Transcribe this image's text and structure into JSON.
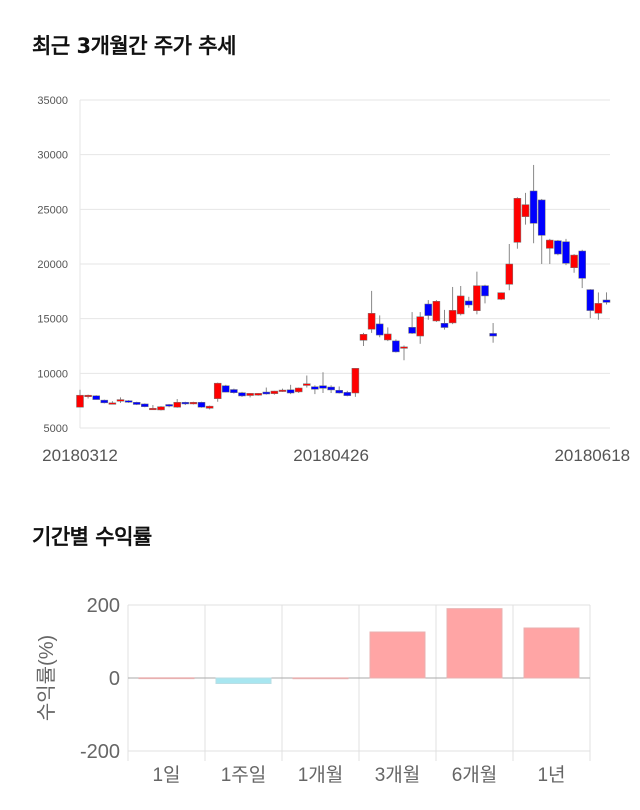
{
  "titles": {
    "price_trend": "최근 3개월간 주가 추세",
    "returns": "기간별 수익률"
  },
  "chart_data": [
    {
      "type": "candlestick",
      "ylim": [
        5000,
        35000
      ],
      "yticks": [
        "35000",
        "30000",
        "25000",
        "20000",
        "15000",
        "10000",
        "5000"
      ],
      "ytick_values": [
        35000,
        30000,
        25000,
        20000,
        15000,
        10000,
        5000
      ],
      "xtick_labels": [
        {
          "label": "20180312",
          "index": 0
        },
        {
          "label": "20180426",
          "index": 31
        },
        {
          "label": "20180618",
          "index": 63
        }
      ],
      "grid": true,
      "up_color": "#ff0000",
      "down_color": "#0000ff",
      "candles_ohlc": [
        [
          6900,
          8500,
          6900,
          8000
        ],
        [
          7950,
          8050,
          7700,
          8000
        ],
        [
          7950,
          8000,
          7600,
          7600
        ],
        [
          7550,
          7600,
          7250,
          7300
        ],
        [
          7300,
          7450,
          7200,
          7300
        ],
        [
          7450,
          7800,
          7300,
          7600
        ],
        [
          7500,
          7550,
          7300,
          7350
        ],
        [
          7350,
          7400,
          7100,
          7150
        ],
        [
          7200,
          7250,
          6900,
          6950
        ],
        [
          6800,
          7100,
          6700,
          6800
        ],
        [
          6650,
          7000,
          6600,
          6950
        ],
        [
          7150,
          7200,
          6900,
          7000
        ],
        [
          6900,
          7650,
          6850,
          7350
        ],
        [
          7350,
          7400,
          7100,
          7200
        ],
        [
          7200,
          7400,
          7150,
          7350
        ],
        [
          7350,
          7400,
          6850,
          6900
        ],
        [
          6800,
          7050,
          6700,
          7000
        ],
        [
          7680,
          9150,
          7400,
          9100
        ],
        [
          8870,
          8950,
          8250,
          8280
        ],
        [
          8520,
          8600,
          8150,
          8230
        ],
        [
          8230,
          8300,
          7850,
          7930
        ],
        [
          7970,
          8200,
          7800,
          8170
        ],
        [
          8000,
          8200,
          7950,
          8170
        ],
        [
          8290,
          8700,
          8050,
          8110
        ],
        [
          8140,
          8400,
          8050,
          8380
        ],
        [
          8350,
          8600,
          8300,
          8470
        ],
        [
          8500,
          8950,
          8100,
          8200
        ],
        [
          8300,
          8700,
          8200,
          8660
        ],
        [
          8890,
          9800,
          8700,
          9050
        ],
        [
          8780,
          8900,
          8100,
          8540
        ],
        [
          8870,
          10100,
          8200,
          8630
        ],
        [
          8750,
          8900,
          8200,
          8480
        ],
        [
          8450,
          8800,
          8150,
          8200
        ],
        [
          8260,
          8400,
          7900,
          7960
        ],
        [
          8200,
          10460,
          7850,
          10460
        ],
        [
          13020,
          13700,
          12500,
          13570
        ],
        [
          14030,
          17540,
          13700,
          15490
        ],
        [
          14520,
          15300,
          13300,
          13500
        ],
        [
          13050,
          14200,
          12950,
          13600
        ],
        [
          12970,
          13100,
          11900,
          11960
        ],
        [
          12420,
          12550,
          11200,
          12420
        ],
        [
          14210,
          15600,
          13600,
          13660
        ],
        [
          13410,
          15600,
          12700,
          15180
        ],
        [
          16340,
          16700,
          14900,
          15280
        ],
        [
          14790,
          16700,
          14700,
          16590
        ],
        [
          14580,
          15800,
          14000,
          14190
        ],
        [
          14610,
          17900,
          14500,
          15760
        ],
        [
          15430,
          17990,
          15300,
          17080
        ],
        [
          16620,
          17000,
          16000,
          16250
        ],
        [
          15730,
          19300,
          15400,
          18020
        ],
        [
          18020,
          18100,
          16400,
          17080
        ],
        [
          13650,
          14600,
          12800,
          13410
        ],
        [
          16770,
          17400,
          16700,
          17380
        ],
        [
          18140,
          21830,
          17600,
          20000
        ],
        [
          21980,
          26100,
          21400,
          26010
        ],
        [
          24330,
          26500,
          23600,
          25430
        ],
        [
          26680,
          29060,
          21900,
          23720
        ],
        [
          25860,
          25950,
          20000,
          22620
        ],
        [
          21430,
          22300,
          20000,
          22190
        ],
        [
          22130,
          22200,
          20800,
          20910
        ],
        [
          22040,
          22300,
          19900,
          20060
        ],
        [
          19660,
          20900,
          19200,
          20820
        ],
        [
          21190,
          21300,
          17800,
          18690
        ],
        [
          17660,
          17700,
          15050,
          15740
        ],
        [
          15490,
          17400,
          14900,
          16400
        ],
        [
          16710,
          17400,
          16300,
          16490
        ]
      ]
    },
    {
      "type": "bar",
      "categories": [
        "1일",
        "1주일",
        "1개월",
        "3개월",
        "6개월",
        "1년"
      ],
      "values": [
        0.5,
        -15,
        0.3,
        126,
        190,
        137
      ],
      "ylabel": "수익률(%)",
      "ylim": [
        -200,
        200
      ],
      "yticks": [
        "200",
        "0",
        "-200"
      ],
      "ytick_values": [
        200,
        0,
        -200
      ],
      "positive_color": "#ffa5a5",
      "negative_color": "#a8e6f0",
      "grid": true
    }
  ]
}
